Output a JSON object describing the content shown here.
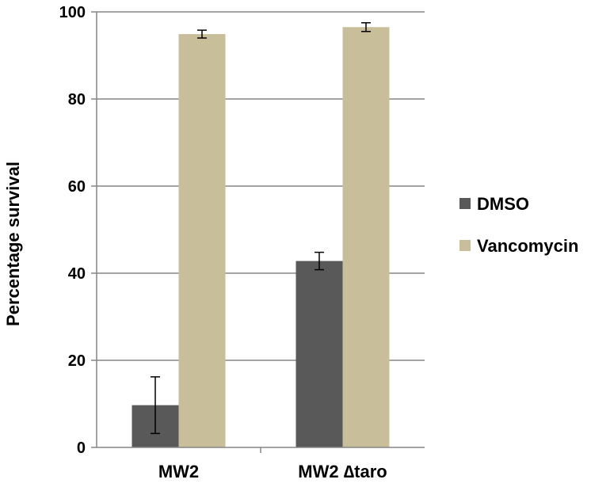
{
  "chart_data": {
    "type": "bar",
    "categories": [
      "MW2",
      "MW2 ∆taro"
    ],
    "series": [
      {
        "name": "DMSO",
        "values": [
          9.7,
          42.8
        ],
        "errors": [
          6.5,
          2.0
        ],
        "color": "#595959"
      },
      {
        "name": "Vancomycin",
        "values": [
          94.9,
          96.5
        ],
        "errors": [
          0.9,
          1.0
        ],
        "color": "#c8bf9a"
      }
    ],
    "title": "",
    "xlabel": "",
    "ylabel": "Percentage survival",
    "ylim": [
      0,
      100
    ],
    "yticks": [
      0,
      20,
      40,
      60,
      80,
      100
    ],
    "grid": true,
    "legend_position": "right"
  }
}
